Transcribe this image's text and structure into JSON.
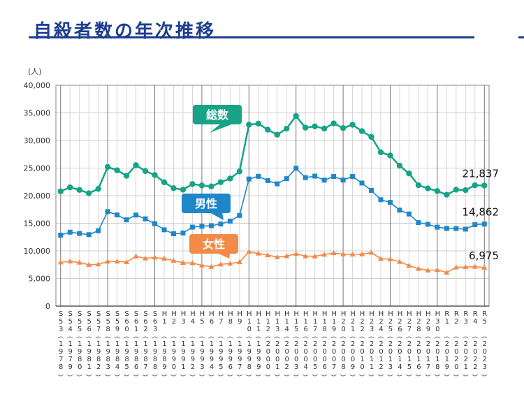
{
  "title": "自殺者数の年次推移",
  "chart_data": {
    "type": "line",
    "title": "自殺者数の年次推移",
    "ylabel": "(人)",
    "ylim": [
      0,
      40000
    ],
    "yticks": [
      "0",
      "5,000",
      "10,000",
      "15,000",
      "20,000",
      "25,000",
      "30,000",
      "35,000",
      "40,000"
    ],
    "grid": true,
    "categories_era": [
      "S53",
      "S54",
      "S55",
      "S56",
      "S57",
      "S58",
      "S59",
      "S60",
      "S61",
      "S62",
      "S63",
      "H1",
      "H2",
      "H3",
      "H4",
      "H5",
      "H6",
      "H7",
      "H8",
      "H9",
      "H10",
      "H11",
      "H12",
      "H13",
      "H14",
      "H15",
      "H16",
      "H17",
      "H18",
      "H19",
      "H20",
      "H21",
      "H22",
      "H23",
      "H24",
      "H25",
      "H26",
      "H27",
      "H28",
      "H29",
      "H30",
      "R1",
      "R2",
      "R3",
      "R4",
      "R5"
    ],
    "categories_year": [
      "1978",
      "1979",
      "1980",
      "1981",
      "1982",
      "1983",
      "1984",
      "1985",
      "1986",
      "1987",
      "1988",
      "1989",
      "1990",
      "1991",
      "1992",
      "1993",
      "1994",
      "1995",
      "1996",
      "1997",
      "1998",
      "1999",
      "2000",
      "2001",
      "2002",
      "2003",
      "2004",
      "2005",
      "2006",
      "2007",
      "2008",
      "2009",
      "2010",
      "2011",
      "2012",
      "2013",
      "2014",
      "2015",
      "2016",
      "2017",
      "2018",
      "2019",
      "2020",
      "2021",
      "2022",
      "2023"
    ],
    "series": [
      {
        "name": "総数",
        "color": "#16a386",
        "marker": "circle",
        "end_label": "21,837",
        "values": [
          20788,
          21503,
          21048,
          20434,
          21228,
          25202,
          24596,
          23599,
          25524,
          24460,
          23742,
          22436,
          21346,
          21084,
          22104,
          21851,
          21679,
          22445,
          23104,
          24391,
          32863,
          33048,
          31957,
          31042,
          32143,
          34427,
          32325,
          32552,
          32155,
          33093,
          32249,
          32845,
          31690,
          30651,
          27858,
          27283,
          25427,
          24025,
          21897,
          21321,
          20840,
          20169,
          21081,
          21007,
          21881,
          21837
        ]
      },
      {
        "name": "男性",
        "color": "#1f87c8",
        "marker": "square",
        "end_label": "14,862",
        "values": [
          12859,
          13386,
          13155,
          12942,
          13654,
          17116,
          16508,
          15624,
          16497,
          15802,
          14934,
          13818,
          13102,
          13242,
          14296,
          14468,
          14560,
          14874,
          15393,
          16416,
          23013,
          23512,
          22727,
          22144,
          23080,
          24963,
          23272,
          23540,
          22813,
          23478,
          22831,
          23472,
          22283,
          20955,
          19273,
          18787,
          17386,
          16681,
          15121,
          14826,
          14290,
          14078,
          14055,
          13939,
          14746,
          14862
        ]
      },
      {
        "name": "女性",
        "color": "#f28a48",
        "marker": "triangle",
        "end_label": "6,975",
        "values": [
          7929,
          8117,
          7893,
          7492,
          7574,
          8086,
          8088,
          7975,
          9027,
          8658,
          8808,
          8618,
          8244,
          7842,
          7808,
          7383,
          7119,
          7571,
          7711,
          7975,
          9850,
          9536,
          9230,
          8898,
          9063,
          9464,
          9053,
          9012,
          9342,
          9615,
          9418,
          9373,
          9407,
          9696,
          8585,
          8496,
          8041,
          7344,
          6776,
          6495,
          6550,
          6091,
          7026,
          7068,
          7135,
          6975
        ]
      }
    ]
  }
}
